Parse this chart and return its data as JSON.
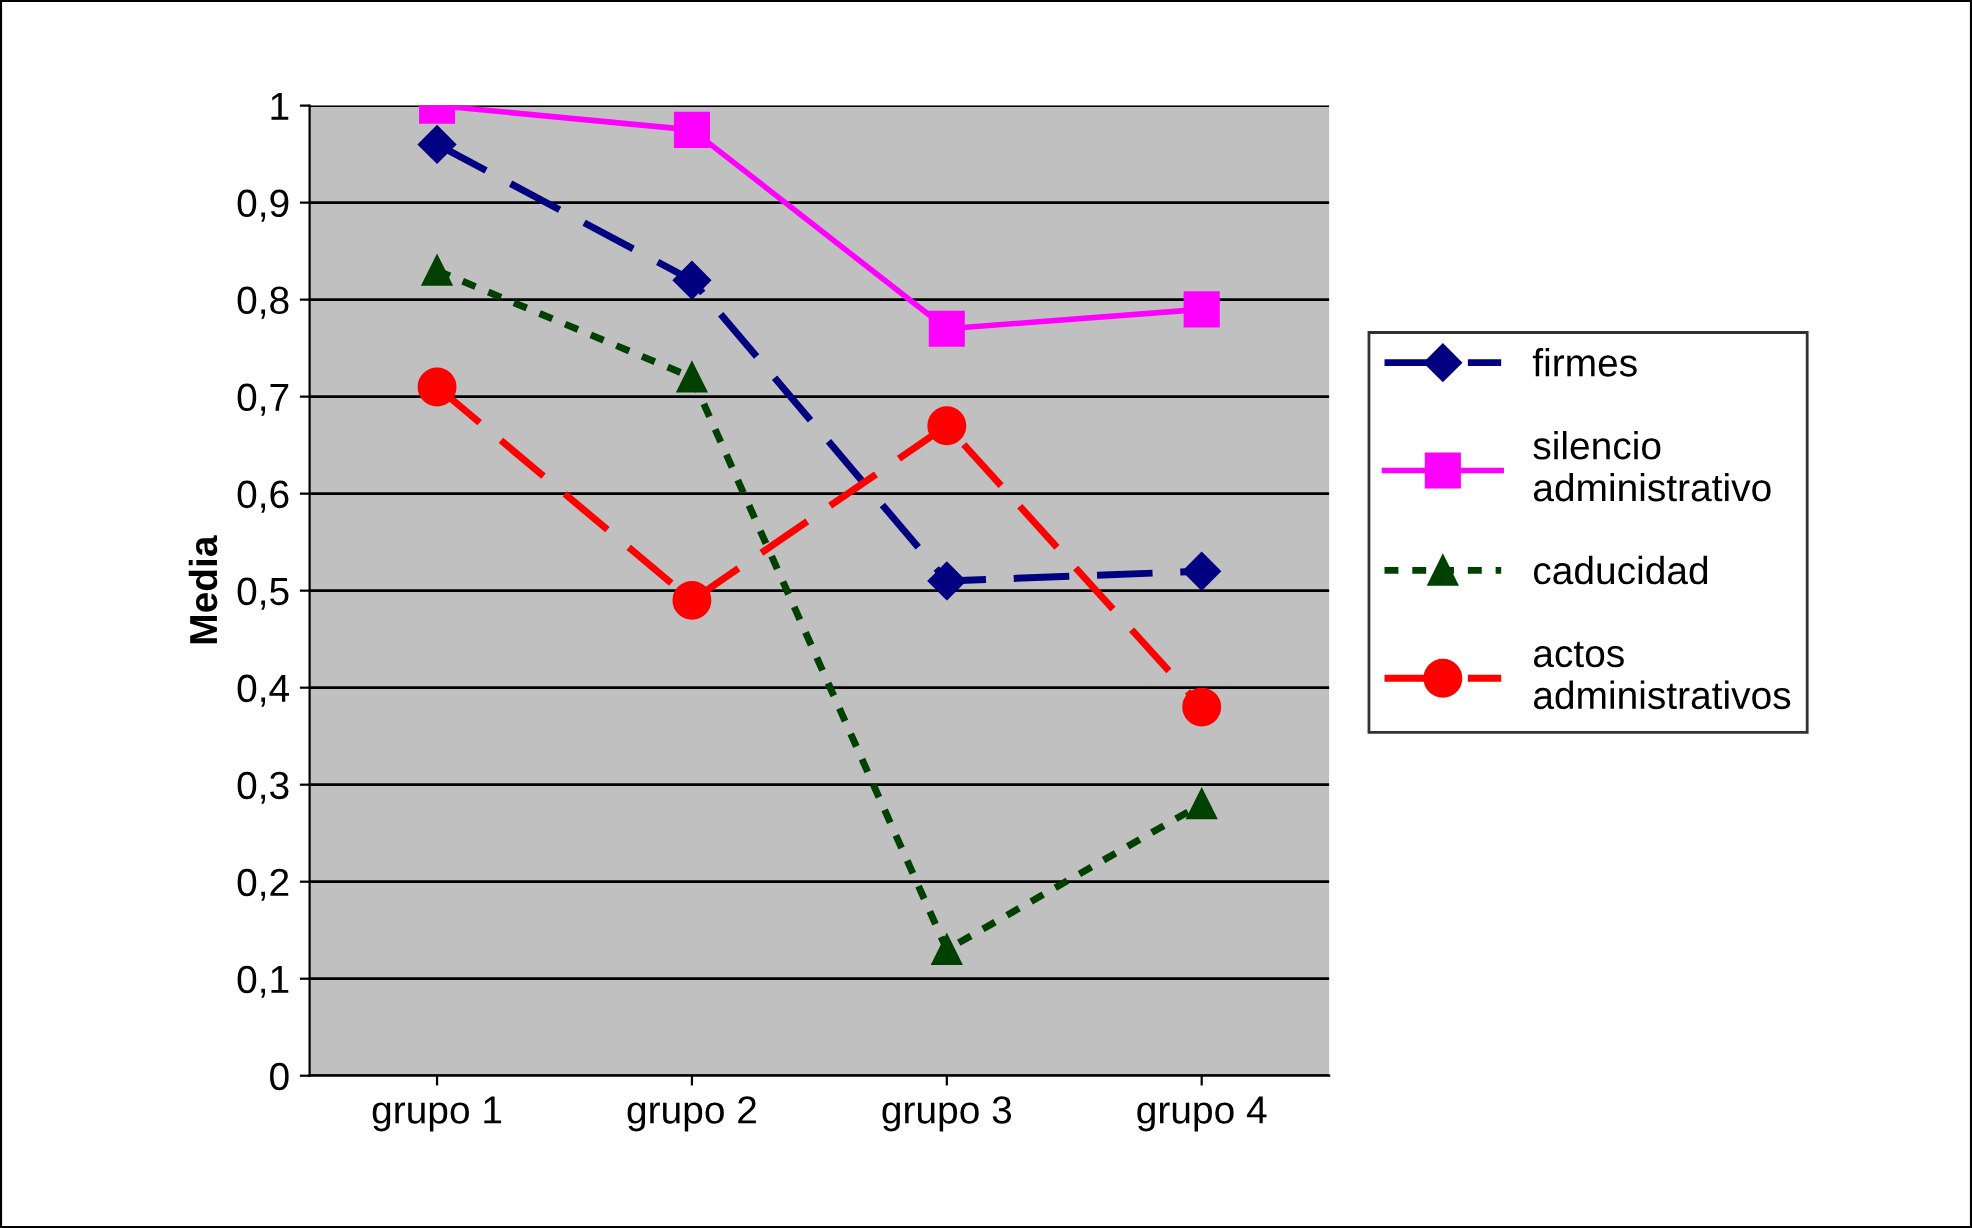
{
  "chart_data": {
    "type": "line",
    "ylabel": "Media",
    "categories": [
      "grupo 1",
      "grupo 2",
      "grupo 3",
      "grupo 4"
    ],
    "series": [
      {
        "name": "firmes",
        "color": "#000080",
        "values": [
          0.96,
          0.82,
          0.51,
          0.52
        ],
        "marker": "diamond",
        "line_style": "dashed"
      },
      {
        "name": "silencio administrativo",
        "color": "#ff00ff",
        "values": [
          1.0,
          0.975,
          0.77,
          0.79
        ],
        "marker": "square",
        "line_style": "solid"
      },
      {
        "name": "caducidad",
        "color": "#004000",
        "values": [
          0.83,
          0.72,
          0.13,
          0.28
        ],
        "marker": "triangle",
        "line_style": "dotted"
      },
      {
        "name": "actos administrativos",
        "color": "#ff0000",
        "values": [
          0.71,
          0.49,
          0.67,
          0.38
        ],
        "marker": "circle",
        "line_style": "dashed"
      }
    ],
    "ylim": [
      0,
      1
    ],
    "yticks": [
      {
        "value": 0,
        "label": "0"
      },
      {
        "value": 0.1,
        "label": "0,1"
      },
      {
        "value": 0.2,
        "label": "0,2"
      },
      {
        "value": 0.3,
        "label": "0,3"
      },
      {
        "value": 0.4,
        "label": "0,4"
      },
      {
        "value": 0.5,
        "label": "0,5"
      },
      {
        "value": 0.6,
        "label": "0,6"
      },
      {
        "value": 0.7,
        "label": "0,7"
      },
      {
        "value": 0.8,
        "label": "0,8"
      },
      {
        "value": 0.9,
        "label": "0,9"
      },
      {
        "value": 1,
        "label": "1"
      }
    ],
    "grid": "y",
    "legend": "right"
  }
}
